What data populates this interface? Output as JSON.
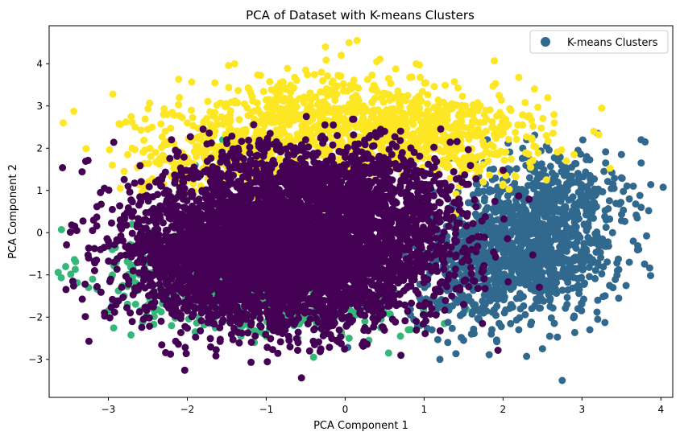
{
  "chart_data": {
    "type": "scatter",
    "title": "PCA of Dataset with K-means Clusters",
    "xlabel": "PCA Component 1",
    "ylabel": "PCA Component 2",
    "xlim": [
      -3.75,
      4.15
    ],
    "ylim": [
      -3.9,
      4.9
    ],
    "xticks": [
      -3,
      -2,
      -1,
      0,
      1,
      2,
      3,
      4
    ],
    "yticks": [
      -3,
      -2,
      -1,
      0,
      1,
      2,
      3,
      4
    ],
    "grid": false,
    "legend": {
      "label": "K-means Clusters",
      "placement": "top-right",
      "color": "#31688e"
    },
    "series": [
      {
        "color": "#35b779",
        "points": [
          [
            -3.0,
            -1.85
          ],
          [
            -3.2,
            -1.1
          ],
          [
            -3.15,
            -1.3
          ],
          [
            -2.8,
            -1.5
          ],
          [
            -2.6,
            -1.85
          ],
          [
            -2.9,
            -0.7
          ],
          [
            -2.7,
            -0.3
          ],
          [
            -2.3,
            -1.6
          ],
          [
            -2.2,
            -2.2
          ],
          [
            -1.9,
            -2.35
          ],
          [
            -1.85,
            -2.0
          ],
          [
            -1.3,
            -2.2
          ],
          [
            -1.0,
            -2.45
          ],
          [
            -1.15,
            -2.6
          ],
          [
            -0.6,
            -2.5
          ],
          [
            -0.4,
            -2.95
          ],
          [
            -0.2,
            -2.4
          ],
          [
            0.05,
            -2.5
          ],
          [
            0.3,
            -2.55
          ],
          [
            0.55,
            -2.85
          ],
          [
            0.8,
            -2.3
          ],
          [
            0.95,
            -2.2
          ],
          [
            1.0,
            -1.9
          ],
          [
            -2.5,
            0.05
          ],
          [
            -2.2,
            0.55
          ],
          [
            -2.0,
            0.9
          ],
          [
            -1.9,
            1.6
          ],
          [
            -1.55,
            2.2
          ],
          [
            -2.7,
            0.2
          ],
          [
            -2.95,
            -0.4
          ],
          [
            -1.7,
            -2.1
          ],
          [
            -1.4,
            -2.3
          ],
          [
            -0.8,
            -2.1
          ],
          [
            -0.05,
            -2.35
          ],
          [
            0.25,
            -2.1
          ],
          [
            0.7,
            -2.45
          ],
          [
            -2.45,
            -1.2
          ],
          [
            -2.6,
            -1.0
          ],
          [
            -2.1,
            -1.9
          ],
          [
            0.45,
            -2.25
          ],
          [
            -1.1,
            -2.35
          ],
          [
            -0.65,
            -2.2
          ],
          [
            -2.35,
            -0.35
          ],
          [
            -2.55,
            -0.6
          ]
        ],
        "clusters": [
          {
            "cx": -1.9,
            "cy": -1.0,
            "sx": 0.7,
            "sy": 0.55,
            "n": 260
          },
          {
            "cx": -0.5,
            "cy": -1.9,
            "sx": 0.8,
            "sy": 0.25,
            "n": 120
          }
        ]
      },
      {
        "color": "#31688e",
        "points": [
          [
            2.75,
            -3.5
          ],
          [
            2.5,
            -2.75
          ],
          [
            1.2,
            -3.0
          ],
          [
            1.3,
            -2.6
          ],
          [
            1.5,
            -2.55
          ],
          [
            3.1,
            -2.3
          ],
          [
            3.2,
            -2.05
          ],
          [
            3.35,
            -1.25
          ],
          [
            3.6,
            -0.7
          ],
          [
            3.65,
            -0.2
          ],
          [
            3.7,
            0.35
          ],
          [
            3.75,
            0.6
          ],
          [
            3.6,
            0.8
          ],
          [
            3.5,
            1.3
          ],
          [
            3.3,
            1.65
          ],
          [
            3.5,
            1.85
          ],
          [
            3.75,
            2.2
          ],
          [
            3.8,
            2.15
          ],
          [
            3.2,
            2.35
          ],
          [
            2.95,
            1.95
          ],
          [
            2.7,
            1.7
          ],
          [
            2.55,
            2.05
          ],
          [
            2.25,
            2.0
          ],
          [
            1.8,
            2.2
          ],
          [
            1.35,
            2.1
          ],
          [
            1.95,
            2.45
          ],
          [
            2.3,
            2.2
          ],
          [
            3.75,
            1.65
          ],
          [
            3.65,
            1.1
          ],
          [
            3.45,
            -0.9
          ],
          [
            3.2,
            -1.6
          ],
          [
            2.95,
            -1.8
          ],
          [
            2.65,
            -2.15
          ],
          [
            2.2,
            -2.3
          ],
          [
            1.85,
            -2.4
          ],
          [
            1.6,
            -2.4
          ],
          [
            1.95,
            -2.15
          ],
          [
            2.9,
            -2.0
          ],
          [
            1.1,
            -2.3
          ]
        ],
        "clusters": [
          {
            "cx": 2.4,
            "cy": -0.3,
            "sx": 0.5,
            "sy": 0.8,
            "n": 900
          },
          {
            "cx": 1.6,
            "cy": -0.9,
            "sx": 0.4,
            "sy": 0.65,
            "n": 300
          },
          {
            "cx": 2.7,
            "cy": 0.9,
            "sx": 0.5,
            "sy": 0.55,
            "n": 200
          }
        ]
      },
      {
        "color": "#fde725",
        "points": [
          [
            0.15,
            4.55
          ],
          [
            0.05,
            4.5
          ],
          [
            -0.25,
            4.4
          ],
          [
            -0.05,
            4.2
          ],
          [
            -1.4,
            4.0
          ],
          [
            -0.5,
            3.85
          ],
          [
            0.4,
            4.05
          ],
          [
            0.9,
            4.0
          ],
          [
            -1.65,
            3.55
          ],
          [
            -2.1,
            3.2
          ],
          [
            -2.3,
            2.8
          ],
          [
            -2.5,
            2.45
          ],
          [
            -2.7,
            2.0
          ],
          [
            -2.95,
            1.6
          ],
          [
            -2.8,
            1.45
          ],
          [
            -2.55,
            1.05
          ],
          [
            -2.85,
            1.05
          ],
          [
            -2.3,
            1.15
          ],
          [
            -2.05,
            0.95
          ],
          [
            -1.55,
            0.55
          ],
          [
            -1.4,
            0.35
          ],
          [
            -1.1,
            0.55
          ],
          [
            -0.3,
            0.4
          ],
          [
            0.05,
            0.4
          ],
          [
            0.5,
            0.4
          ],
          [
            1.4,
            0.45
          ],
          [
            1.3,
            0.35
          ],
          [
            0.85,
            0.45
          ],
          [
            2.0,
            1.15
          ],
          [
            2.15,
            1.35
          ],
          [
            2.35,
            1.55
          ],
          [
            2.55,
            2.3
          ],
          [
            2.65,
            2.6
          ],
          [
            3.15,
            2.4
          ],
          [
            3.25,
            2.95
          ],
          [
            2.9,
            1.85
          ],
          [
            2.8,
            1.7
          ],
          [
            2.55,
            1.25
          ],
          [
            1.75,
            1.2
          ],
          [
            1.45,
            1.1
          ],
          [
            -2.4,
            1.9
          ],
          [
            -2.0,
            2.6
          ],
          [
            -1.5,
            3.05
          ],
          [
            -0.3,
            3.8
          ],
          [
            0.55,
            3.65
          ],
          [
            1.65,
            3.0
          ],
          [
            1.95,
            3.25
          ],
          [
            2.3,
            2.75
          ],
          [
            2.1,
            2.9
          ],
          [
            -2.15,
            1.5
          ],
          [
            -1.85,
            1.4
          ]
        ],
        "clusters": [
          {
            "cx": -0.1,
            "cy": 2.55,
            "sx": 1.05,
            "sy": 0.55,
            "n": 900
          },
          {
            "cx": 1.3,
            "cy": 2.2,
            "sx": 0.55,
            "sy": 0.5,
            "n": 250
          },
          {
            "cx": -1.6,
            "cy": 1.8,
            "sx": 0.5,
            "sy": 0.45,
            "n": 200
          }
        ]
      },
      {
        "color": "#440154",
        "points": [
          [
            -3.45,
            -1.15
          ],
          [
            -3.4,
            0.05
          ],
          [
            -3.2,
            0.05
          ],
          [
            -3.25,
            -0.6
          ],
          [
            -3.1,
            -0.4
          ],
          [
            -3.0,
            -0.2
          ],
          [
            -2.95,
            0.55
          ],
          [
            -3.05,
            1.05
          ],
          [
            -3.1,
            0.95
          ],
          [
            -3.15,
            -0.65
          ],
          [
            -2.45,
            -1.45
          ],
          [
            -2.2,
            -1.7
          ],
          [
            -0.45,
            -2.8
          ],
          [
            -0.85,
            -2.35
          ],
          [
            0.6,
            -2.05
          ],
          [
            0.9,
            -2.1
          ],
          [
            1.15,
            -1.95
          ],
          [
            1.5,
            -1.7
          ],
          [
            1.45,
            -1.3
          ],
          [
            1.25,
            -0.55
          ],
          [
            1.4,
            0.1
          ],
          [
            1.55,
            0.45
          ],
          [
            1.2,
            1.0
          ],
          [
            1.0,
            1.35
          ],
          [
            0.8,
            1.65
          ],
          [
            0.6,
            2.1
          ],
          [
            0.3,
            2.25
          ],
          [
            -0.1,
            2.3
          ],
          [
            -0.5,
            2.2
          ],
          [
            -1.0,
            2.15
          ],
          [
            -1.5,
            2.2
          ],
          [
            -1.8,
            2.45
          ],
          [
            -2.2,
            2.2
          ],
          [
            -2.15,
            1.95
          ],
          [
            -2.4,
            1.2
          ],
          [
            -2.75,
            1.1
          ],
          [
            -2.55,
            0.85
          ],
          [
            -2.35,
            0.55
          ],
          [
            -1.4,
            1.9
          ],
          [
            1.3,
            0.8
          ],
          [
            0.5,
            2.4
          ],
          [
            -0.15,
            2.55
          ],
          [
            -0.95,
            2.35
          ],
          [
            -1.75,
            2.1
          ],
          [
            1.6,
            -0.4
          ],
          [
            1.35,
            -1.5
          ],
          [
            0.25,
            -2.25
          ],
          [
            -1.25,
            -2.05
          ],
          [
            -2.0,
            -1.85
          ],
          [
            -2.6,
            -1.25
          ]
        ],
        "clusters": [
          {
            "cx": -0.9,
            "cy": -0.55,
            "sx": 0.9,
            "sy": 0.85,
            "n": 3500
          },
          {
            "cx": 0.3,
            "cy": 0.2,
            "sx": 0.65,
            "sy": 0.85,
            "n": 900
          },
          {
            "cx": -0.6,
            "cy": 1.3,
            "sx": 0.9,
            "sy": 0.45,
            "n": 500
          },
          {
            "cx": -1.9,
            "cy": -0.4,
            "sx": 0.45,
            "sy": 0.55,
            "n": 400
          }
        ]
      }
    ]
  }
}
